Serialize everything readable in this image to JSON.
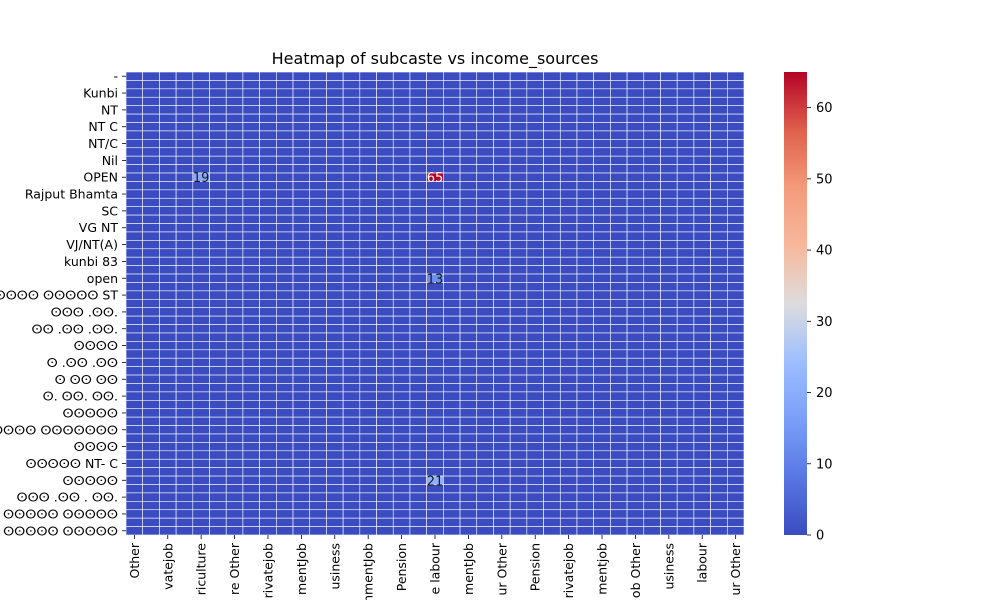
{
  "chart_data": {
    "type": "heatmap",
    "title": "Heatmap of subcaste vs income_sources",
    "colormap": "coolwarm",
    "colorbar_ticks": [
      "0",
      "10",
      "20",
      "30",
      "40",
      "50",
      "60"
    ],
    "vmin": 0,
    "vmax": 65,
    "y_labels_shown": [
      "-",
      "Kunbi",
      "NT",
      "NT C",
      "NT/C",
      "Nil",
      "OPEN",
      "Rajput Bhamta",
      "SC",
      "VG NT",
      "VJ/NT(A)",
      "kunbi 83",
      "open",
      "ⵙⵙⵙⵙⵙⵙⵙ ⵙⵙⵙⵙⵙ ST",
      "ⵙⵙⵙ .ⵙⵙ.",
      "ⵙⵙ .ⵙⵙ .ⵙⵙ.",
      "ⵙⵙⵙⵙ",
      "ⵙ .ⵙⵙ .ⵙⵙ",
      "ⵙ ⵙⵙ ⵙⵙ",
      "ⵙ. ⵙⵙ. ⵙⵙ.",
      "ⵙⵙⵙⵙⵙ",
      "ⵙⵙ ⵙⵙⵙⵙⵙ ⵙⵙⵙⵙⵙⵙⵙ",
      "ⵙⵙⵙⵙ",
      "ⵙⵙⵙⵙⵙ NT- C",
      "ⵙⵙⵙⵙⵙ",
      "ⵙⵙⵙ .ⵙⵙ . ⵙⵙ.",
      "ⵙⵙⵙ ⵙⵙⵙⵙⵙ ⵙⵙⵙⵙⵙ",
      "ⵙⵙⵙⵙⵙ ⵙⵙⵙⵙⵙ"
    ],
    "x_labels_shown": [
      "Other",
      "vatejob",
      "riculture",
      "re Other",
      "rivatejob",
      "mentJob",
      "usiness",
      "rnmentJob",
      "Pension",
      "e labour",
      "mentJob",
      "ur Other",
      "Pension",
      "rivatejob",
      "mentjob",
      "ob Other",
      "usiness",
      "labour",
      "ur Other"
    ],
    "hot_cells": [
      {
        "row": "OPEN",
        "col": "e labour",
        "value": 65
      },
      {
        "row": "ⵙⵙⵙⵙⵙ",
        "col": "e labour",
        "value": 21
      },
      {
        "row": "OPEN",
        "col": "riculture",
        "value": 19
      },
      {
        "row": "open",
        "col": "e labour",
        "value": 13
      }
    ]
  }
}
